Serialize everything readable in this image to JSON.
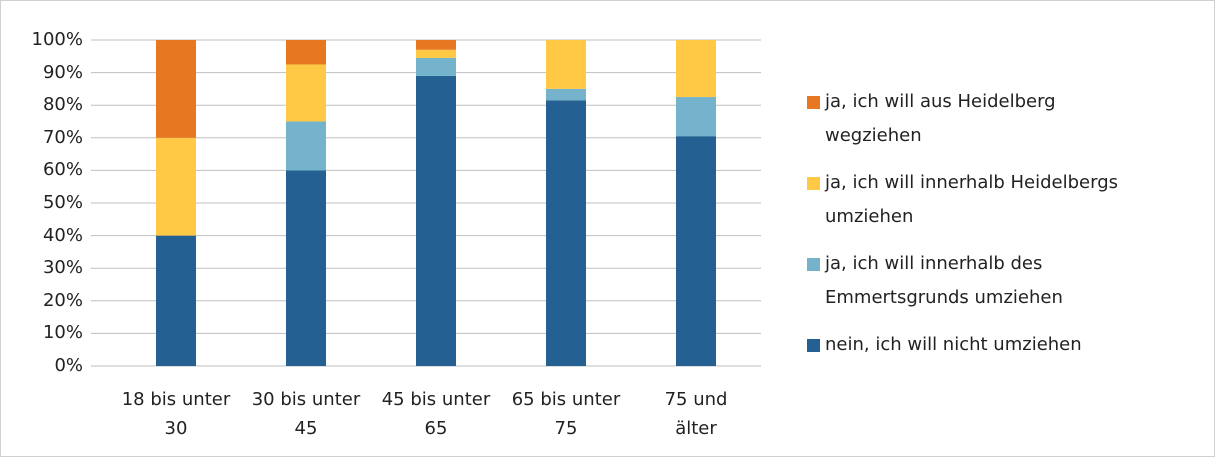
{
  "chart_data": {
    "type": "stacked_bar",
    "categories": [
      "18 bis unter 30",
      "30 bis unter 45",
      "45 bis unter 65",
      "65 bis unter 75",
      "75 und älter"
    ],
    "series": [
      {
        "name": "nein, ich will nicht umziehen",
        "color": "#246192",
        "values": [
          40,
          60,
          89,
          81.5,
          70.5
        ]
      },
      {
        "name": "ja, ich will innerhalb des Emmertsgrunds umziehen",
        "color": "#74b3cb",
        "values": [
          0,
          15,
          5.5,
          3.5,
          12
        ]
      },
      {
        "name": "ja, ich will innerhalb Heidelbergs umziehen",
        "color": "#ffc845",
        "values": [
          30,
          17.5,
          2.5,
          15,
          17.5
        ]
      },
      {
        "name": "ja, ich will aus Heidelberg wegziehen",
        "color": "#e87722",
        "values": [
          30,
          7.5,
          3,
          0,
          0
        ]
      }
    ],
    "ylim": [
      0,
      100
    ],
    "yticks": [
      {
        "value": 0,
        "label": "0%"
      },
      {
        "value": 10,
        "label": "10%"
      },
      {
        "value": 20,
        "label": "20%"
      },
      {
        "value": 30,
        "label": "30%"
      },
      {
        "value": 40,
        "label": "40%"
      },
      {
        "value": 50,
        "label": "50%"
      },
      {
        "value": 60,
        "label": "60%"
      },
      {
        "value": 70,
        "label": "70%"
      },
      {
        "value": 80,
        "label": "80%"
      },
      {
        "value": 90,
        "label": "90%"
      },
      {
        "value": 100,
        "label": "100%"
      }
    ],
    "grid": true
  }
}
